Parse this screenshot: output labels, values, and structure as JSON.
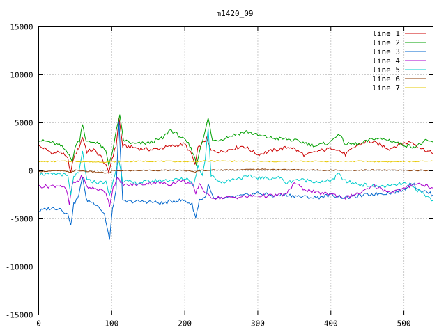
{
  "chart_data": {
    "type": "line",
    "title": "m1420_09",
    "xlabel": "",
    "ylabel": "",
    "xlim": [
      0,
      540
    ],
    "ylim": [
      -15000,
      15000
    ],
    "x_ticks": [
      0,
      100,
      200,
      300,
      400,
      500
    ],
    "y_ticks": [
      -15000,
      -10000,
      -5000,
      0,
      5000,
      10000,
      15000
    ],
    "grid": true,
    "legend": "top-right",
    "series": [
      {
        "name": "line 1",
        "color": "#cc0000",
        "points": [
          [
            0,
            2600
          ],
          [
            10,
            2200
          ],
          [
            20,
            1800
          ],
          [
            30,
            2000
          ],
          [
            40,
            1200
          ],
          [
            44,
            -200
          ],
          [
            48,
            1400
          ],
          [
            55,
            2400
          ],
          [
            60,
            3500
          ],
          [
            66,
            2000
          ],
          [
            75,
            2200
          ],
          [
            85,
            1500
          ],
          [
            92,
            500
          ],
          [
            96,
            -200
          ],
          [
            100,
            1200
          ],
          [
            106,
            2600
          ],
          [
            110,
            5500
          ],
          [
            115,
            2600
          ],
          [
            125,
            2500
          ],
          [
            140,
            2300
          ],
          [
            155,
            2200
          ],
          [
            170,
            2400
          ],
          [
            185,
            2600
          ],
          [
            200,
            2800
          ],
          [
            210,
            1600
          ],
          [
            214,
            600
          ],
          [
            218,
            2300
          ],
          [
            225,
            3000
          ],
          [
            230,
            3300
          ],
          [
            236,
            2100
          ],
          [
            250,
            2000
          ],
          [
            265,
            2300
          ],
          [
            280,
            2600
          ],
          [
            300,
            1700
          ],
          [
            320,
            2100
          ],
          [
            345,
            2500
          ],
          [
            365,
            1600
          ],
          [
            385,
            2100
          ],
          [
            405,
            2400
          ],
          [
            420,
            1700
          ],
          [
            435,
            2600
          ],
          [
            450,
            3100
          ],
          [
            465,
            2800
          ],
          [
            480,
            2300
          ],
          [
            495,
            2800
          ],
          [
            510,
            3000
          ],
          [
            525,
            2300
          ],
          [
            540,
            1800
          ]
        ]
      },
      {
        "name": "line 2",
        "color": "#00a000",
        "points": [
          [
            0,
            3200
          ],
          [
            15,
            3000
          ],
          [
            30,
            2600
          ],
          [
            42,
            1800
          ],
          [
            46,
            800
          ],
          [
            50,
            2600
          ],
          [
            56,
            3200
          ],
          [
            60,
            5000
          ],
          [
            65,
            3000
          ],
          [
            80,
            3000
          ],
          [
            92,
            2000
          ],
          [
            96,
            600
          ],
          [
            102,
            2400
          ],
          [
            108,
            4800
          ],
          [
            111,
            5700
          ],
          [
            116,
            3200
          ],
          [
            130,
            2800
          ],
          [
            150,
            2900
          ],
          [
            170,
            3400
          ],
          [
            180,
            4300
          ],
          [
            195,
            3500
          ],
          [
            205,
            2800
          ],
          [
            212,
            1800
          ],
          [
            216,
            600
          ],
          [
            222,
            2700
          ],
          [
            228,
            4100
          ],
          [
            232,
            5500
          ],
          [
            238,
            3100
          ],
          [
            250,
            3300
          ],
          [
            265,
            3700
          ],
          [
            285,
            4100
          ],
          [
            300,
            3700
          ],
          [
            320,
            3400
          ],
          [
            340,
            3300
          ],
          [
            360,
            3000
          ],
          [
            380,
            2600
          ],
          [
            400,
            3000
          ],
          [
            410,
            3900
          ],
          [
            420,
            2800
          ],
          [
            440,
            2800
          ],
          [
            460,
            3400
          ],
          [
            480,
            3200
          ],
          [
            500,
            2700
          ],
          [
            515,
            2500
          ],
          [
            530,
            3100
          ],
          [
            540,
            3000
          ]
        ]
      },
      {
        "name": "line 3",
        "color": "#0066cc",
        "points": [
          [
            0,
            -4200
          ],
          [
            15,
            -3900
          ],
          [
            30,
            -3900
          ],
          [
            40,
            -4600
          ],
          [
            44,
            -5500
          ],
          [
            48,
            -3500
          ],
          [
            55,
            -2600
          ],
          [
            60,
            -500
          ],
          [
            65,
            -3000
          ],
          [
            80,
            -3500
          ],
          [
            90,
            -4500
          ],
          [
            94,
            -6000
          ],
          [
            97,
            -7200
          ],
          [
            101,
            -4000
          ],
          [
            106,
            -2000
          ],
          [
            110,
            5200
          ],
          [
            115,
            -3200
          ],
          [
            130,
            -3200
          ],
          [
            150,
            -3200
          ],
          [
            170,
            -3400
          ],
          [
            185,
            -3100
          ],
          [
            200,
            -3100
          ],
          [
            210,
            -3500
          ],
          [
            215,
            -4900
          ],
          [
            220,
            -3000
          ],
          [
            228,
            -2800
          ],
          [
            232,
            -1500
          ],
          [
            240,
            -3000
          ],
          [
            260,
            -2800
          ],
          [
            280,
            -2600
          ],
          [
            300,
            -2300
          ],
          [
            320,
            -2600
          ],
          [
            340,
            -2500
          ],
          [
            360,
            -2700
          ],
          [
            380,
            -2800
          ],
          [
            400,
            -2500
          ],
          [
            420,
            -2800
          ],
          [
            440,
            -2600
          ],
          [
            460,
            -2400
          ],
          [
            480,
            -2300
          ],
          [
            500,
            -2000
          ],
          [
            510,
            -1200
          ],
          [
            520,
            -1900
          ],
          [
            530,
            -2200
          ],
          [
            540,
            -2500
          ]
        ]
      },
      {
        "name": "line 4",
        "color": "#aa00cc",
        "points": [
          [
            0,
            -1600
          ],
          [
            15,
            -1600
          ],
          [
            30,
            -1500
          ],
          [
            38,
            -2000
          ],
          [
            42,
            -3500
          ],
          [
            46,
            -1400
          ],
          [
            55,
            -1000
          ],
          [
            60,
            -500
          ],
          [
            66,
            -1700
          ],
          [
            80,
            -1900
          ],
          [
            92,
            -2200
          ],
          [
            97,
            -3600
          ],
          [
            102,
            -1700
          ],
          [
            108,
            -800
          ],
          [
            112,
            -1200
          ],
          [
            120,
            -1500
          ],
          [
            140,
            -1400
          ],
          [
            160,
            -1200
          ],
          [
            180,
            -1400
          ],
          [
            195,
            -1000
          ],
          [
            210,
            -1400
          ],
          [
            215,
            -2400
          ],
          [
            220,
            -1300
          ],
          [
            230,
            -2500
          ],
          [
            240,
            -2800
          ],
          [
            260,
            -2800
          ],
          [
            280,
            -2700
          ],
          [
            300,
            -2600
          ],
          [
            320,
            -2600
          ],
          [
            340,
            -2400
          ],
          [
            350,
            -1200
          ],
          [
            360,
            -1800
          ],
          [
            380,
            -2300
          ],
          [
            400,
            -2400
          ],
          [
            420,
            -2800
          ],
          [
            440,
            -2300
          ],
          [
            460,
            -1600
          ],
          [
            480,
            -2200
          ],
          [
            500,
            -1900
          ],
          [
            515,
            -1300
          ],
          [
            530,
            -1500
          ],
          [
            540,
            -1800
          ]
        ]
      },
      {
        "name": "line 5",
        "color": "#00cccc",
        "points": [
          [
            0,
            -300
          ],
          [
            15,
            -400
          ],
          [
            30,
            -300
          ],
          [
            40,
            -600
          ],
          [
            44,
            -2600
          ],
          [
            48,
            -500
          ],
          [
            55,
            -300
          ],
          [
            60,
            2000
          ],
          [
            66,
            -1000
          ],
          [
            80,
            -1200
          ],
          [
            92,
            -1200
          ],
          [
            97,
            -2600
          ],
          [
            102,
            -1000
          ],
          [
            110,
            1200
          ],
          [
            115,
            -1000
          ],
          [
            130,
            -1300
          ],
          [
            150,
            -1100
          ],
          [
            170,
            -1000
          ],
          [
            190,
            -900
          ],
          [
            205,
            -800
          ],
          [
            212,
            -1600
          ],
          [
            218,
            500
          ],
          [
            224,
            -400
          ],
          [
            228,
            1300
          ],
          [
            232,
            4500
          ],
          [
            236,
            -500
          ],
          [
            250,
            -1200
          ],
          [
            270,
            -800
          ],
          [
            290,
            -600
          ],
          [
            310,
            -800
          ],
          [
            330,
            -700
          ],
          [
            340,
            -1300
          ],
          [
            350,
            -900
          ],
          [
            370,
            -1000
          ],
          [
            390,
            -1200
          ],
          [
            405,
            -800
          ],
          [
            410,
            -300
          ],
          [
            420,
            -1100
          ],
          [
            440,
            -1400
          ],
          [
            460,
            -1600
          ],
          [
            480,
            -1600
          ],
          [
            500,
            -1300
          ],
          [
            515,
            -1800
          ],
          [
            530,
            -2600
          ],
          [
            540,
            -3100
          ]
        ]
      },
      {
        "name": "line 6",
        "color": "#8b3a00",
        "points": [
          [
            0,
            -50
          ],
          [
            30,
            0
          ],
          [
            44,
            -150
          ],
          [
            50,
            50
          ],
          [
            96,
            -250
          ],
          [
            100,
            0
          ],
          [
            150,
            50
          ],
          [
            200,
            50
          ],
          [
            214,
            -150
          ],
          [
            220,
            50
          ],
          [
            260,
            100
          ],
          [
            300,
            150
          ],
          [
            340,
            120
          ],
          [
            380,
            80
          ],
          [
            420,
            60
          ],
          [
            460,
            80
          ],
          [
            500,
            50
          ],
          [
            540,
            40
          ]
        ]
      },
      {
        "name": "line 7",
        "color": "#e6c800",
        "points": [
          [
            0,
            950
          ],
          [
            40,
            1000
          ],
          [
            80,
            920
          ],
          [
            120,
            980
          ],
          [
            160,
            1000
          ],
          [
            200,
            960
          ],
          [
            240,
            1020
          ],
          [
            280,
            1000
          ],
          [
            320,
            960
          ],
          [
            360,
            1000
          ],
          [
            400,
            980
          ],
          [
            440,
            1000
          ],
          [
            480,
            950
          ],
          [
            520,
            980
          ],
          [
            540,
            1000
          ]
        ]
      }
    ]
  }
}
